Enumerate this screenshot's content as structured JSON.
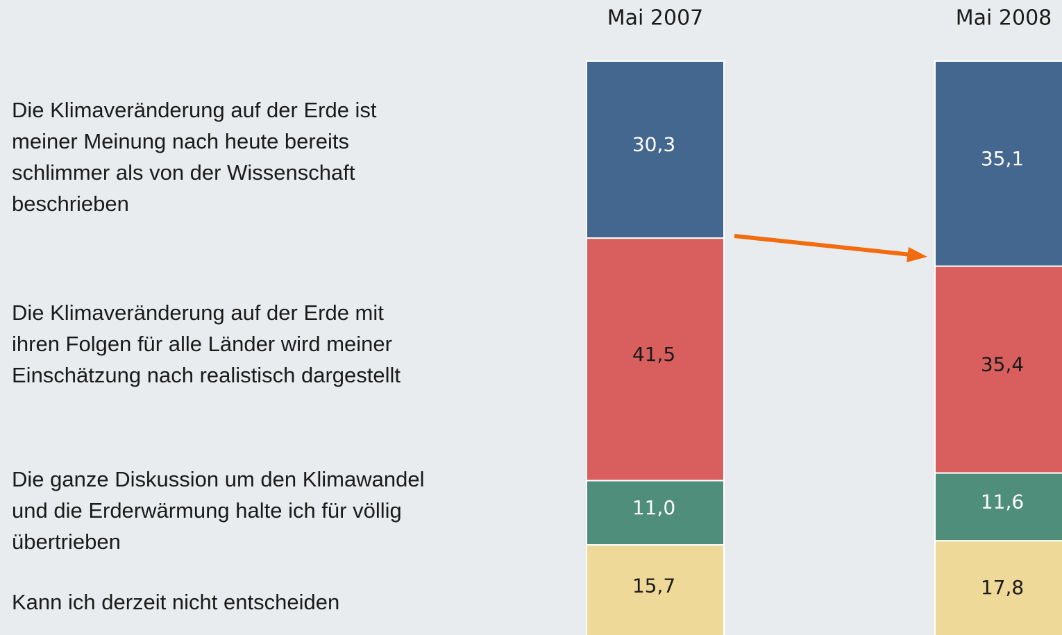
{
  "chart_data": {
    "type": "stacked_bar",
    "categories": [
      "Mai 2007",
      "Mai 2008"
    ],
    "series": [
      {
        "name": "Die Klimaveränderung auf der Erde ist meiner Meinung nach heute bereits schlimmer als von der Wissenschaft beschrieben",
        "color": "#43678f",
        "values": [
          30.3,
          35.1
        ],
        "value_labels": [
          "30,3",
          "35,1"
        ]
      },
      {
        "name": "Die Klimaveränderung auf der Erde mit ihren Folgen für alle Länder wird meiner Einschätzung nach realistisch dargestellt",
        "color": "#d95f5f",
        "values": [
          41.5,
          35.4
        ],
        "value_labels": [
          "41,5",
          "35,4"
        ]
      },
      {
        "name": "Die ganze Diskussion um den Klimawandel und die Erderwärmung halte ich für völlig übertrieben",
        "color": "#4f8e7a",
        "values": [
          11.0,
          11.6
        ],
        "value_labels": [
          "11,0",
          "11,6"
        ]
      },
      {
        "name": "Kann ich derzeit nicht entscheiden",
        "color": "#efd998",
        "values": [
          15.7,
          17.8
        ],
        "value_labels": [
          "15,7",
          "17,8"
        ]
      }
    ]
  }
}
